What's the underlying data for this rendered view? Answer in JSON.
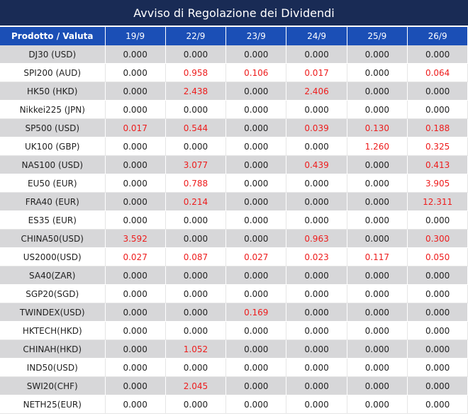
{
  "title": "Avviso di Regolazione dei Dividendi",
  "header": {
    "product_label": "Prodotto / Valuta",
    "dates": [
      "19/9",
      "22/9",
      "23/9",
      "24/9",
      "25/9",
      "26/9"
    ]
  },
  "colors": {
    "title_bg": "#192b55",
    "header_bg": "#1b4fb6",
    "stripe": "#d7d7d9",
    "highlight": "#ee1c1c"
  },
  "rows": [
    {
      "product": "DJ30 (USD)",
      "values": [
        "0.000",
        "0.000",
        "0.000",
        "0.000",
        "0.000",
        "0.000"
      ]
    },
    {
      "product": "SPI200 (AUD)",
      "values": [
        "0.000",
        "0.958",
        "0.106",
        "0.017",
        "0.000",
        "0.064"
      ]
    },
    {
      "product": "HK50 (HKD)",
      "values": [
        "0.000",
        "2.438",
        "0.000",
        "2.406",
        "0.000",
        "0.000"
      ]
    },
    {
      "product": "Nikkei225 (JPN)",
      "values": [
        "0.000",
        "0.000",
        "0.000",
        "0.000",
        "0.000",
        "0.000"
      ]
    },
    {
      "product": "SP500 (USD)",
      "values": [
        "0.017",
        "0.544",
        "0.000",
        "0.039",
        "0.130",
        "0.188"
      ]
    },
    {
      "product": "UK100 (GBP)",
      "values": [
        "0.000",
        "0.000",
        "0.000",
        "0.000",
        "1.260",
        "0.325"
      ]
    },
    {
      "product": "NAS100 (USD)",
      "values": [
        "0.000",
        "3.077",
        "0.000",
        "0.439",
        "0.000",
        "0.413"
      ]
    },
    {
      "product": "EU50 (EUR)",
      "values": [
        "0.000",
        "0.788",
        "0.000",
        "0.000",
        "0.000",
        "3.905"
      ]
    },
    {
      "product": "FRA40 (EUR)",
      "values": [
        "0.000",
        "0.214",
        "0.000",
        "0.000",
        "0.000",
        "12.311"
      ]
    },
    {
      "product": "ES35 (EUR)",
      "values": [
        "0.000",
        "0.000",
        "0.000",
        "0.000",
        "0.000",
        "0.000"
      ]
    },
    {
      "product": "CHINA50(USD)",
      "values": [
        "3.592",
        "0.000",
        "0.000",
        "0.963",
        "0.000",
        "0.300"
      ]
    },
    {
      "product": "US2000(USD)",
      "values": [
        "0.027",
        "0.087",
        "0.027",
        "0.023",
        "0.117",
        "0.050"
      ]
    },
    {
      "product": "SA40(ZAR)",
      "values": [
        "0.000",
        "0.000",
        "0.000",
        "0.000",
        "0.000",
        "0.000"
      ]
    },
    {
      "product": "SGP20(SGD)",
      "values": [
        "0.000",
        "0.000",
        "0.000",
        "0.000",
        "0.000",
        "0.000"
      ]
    },
    {
      "product": "TWINDEX(USD)",
      "values": [
        "0.000",
        "0.000",
        "0.169",
        "0.000",
        "0.000",
        "0.000"
      ]
    },
    {
      "product": "HKTECH(HKD)",
      "values": [
        "0.000",
        "0.000",
        "0.000",
        "0.000",
        "0.000",
        "0.000"
      ]
    },
    {
      "product": "CHINAH(HKD)",
      "values": [
        "0.000",
        "1.052",
        "0.000",
        "0.000",
        "0.000",
        "0.000"
      ]
    },
    {
      "product": "IND50(USD)",
      "values": [
        "0.000",
        "0.000",
        "0.000",
        "0.000",
        "0.000",
        "0.000"
      ]
    },
    {
      "product": "SWI20(CHF)",
      "values": [
        "0.000",
        "2.045",
        "0.000",
        "0.000",
        "0.000",
        "0.000"
      ]
    },
    {
      "product": "NETH25(EUR)",
      "values": [
        "0.000",
        "0.000",
        "0.000",
        "0.000",
        "0.000",
        "0.000"
      ]
    }
  ]
}
